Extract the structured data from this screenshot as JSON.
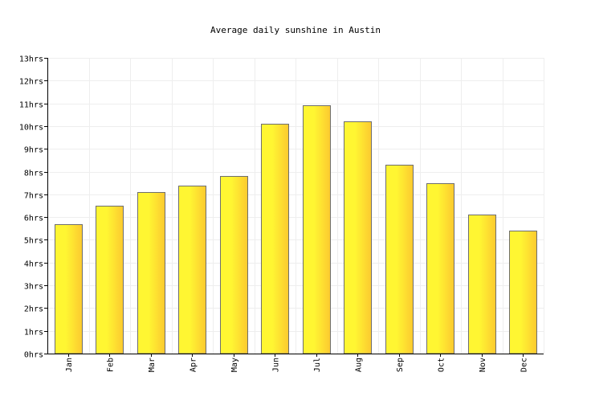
{
  "chart_data": {
    "type": "bar",
    "title": "Average daily sunshine in Austin",
    "xlabel": "",
    "ylabel": "",
    "categories": [
      "Jan",
      "Feb",
      "Mar",
      "Apr",
      "May",
      "Jun",
      "Jul",
      "Aug",
      "Sep",
      "Oct",
      "Nov",
      "Dec"
    ],
    "values": [
      5.7,
      6.5,
      7.1,
      7.4,
      7.8,
      10.1,
      10.9,
      10.2,
      8.3,
      7.5,
      6.1,
      5.4
    ],
    "ylim": [
      0,
      13
    ],
    "yticks": [
      0,
      1,
      2,
      3,
      4,
      5,
      6,
      7,
      8,
      9,
      10,
      11,
      12,
      13
    ],
    "ytick_labels": [
      "0hrs",
      "1hrs",
      "2hrs",
      "3hrs",
      "4hrs",
      "5hrs",
      "6hrs",
      "7hrs",
      "8hrs",
      "9hrs",
      "10hrs",
      "11hrs",
      "12hrs",
      "13hrs"
    ],
    "grid": true,
    "legend": "none",
    "colors": {
      "bar_light": "#fff632",
      "bar_dark": "#fcc930",
      "bar_outline": "#6e6e6e",
      "grid": "#eeeeee",
      "axis": "#000000"
    }
  }
}
